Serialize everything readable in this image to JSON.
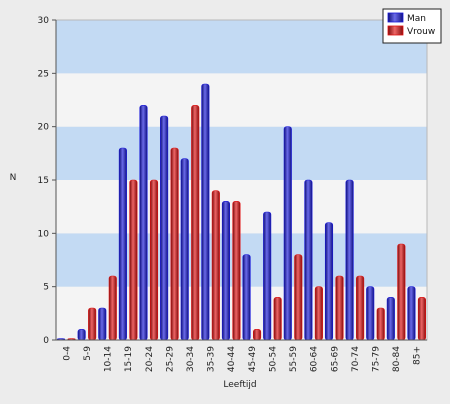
{
  "chart_data": {
    "type": "bar",
    "xlabel": "Leeftijd",
    "ylabel": "N",
    "ylim": [
      0,
      30
    ],
    "yticks": [
      0,
      5,
      10,
      15,
      20,
      25,
      30
    ],
    "grid": "horizontal bands",
    "legend_position": "top-right",
    "categories": [
      "0-4",
      "5-9",
      "10-14",
      "15-19",
      "20-24",
      "25-29",
      "30-34",
      "35-39",
      "40-44",
      "45-49",
      "50-54",
      "55-59",
      "60-64",
      "65-69",
      "70-74",
      "75-79",
      "80-84",
      "85+"
    ],
    "series": [
      {
        "name": "Man",
        "color": "#1a1adb",
        "values": [
          0,
          1,
          3,
          18,
          22,
          21,
          17,
          24,
          13,
          8,
          12,
          20,
          15,
          11,
          15,
          5,
          4,
          5
        ]
      },
      {
        "name": "Vrouw",
        "color": "#e21212",
        "values": [
          0,
          3,
          6,
          15,
          15,
          18,
          22,
          14,
          13,
          1,
          4,
          8,
          5,
          6,
          6,
          3,
          9,
          4
        ]
      }
    ],
    "band_colors": [
      "#c3daf3",
      "#f4f4f4"
    ]
  }
}
